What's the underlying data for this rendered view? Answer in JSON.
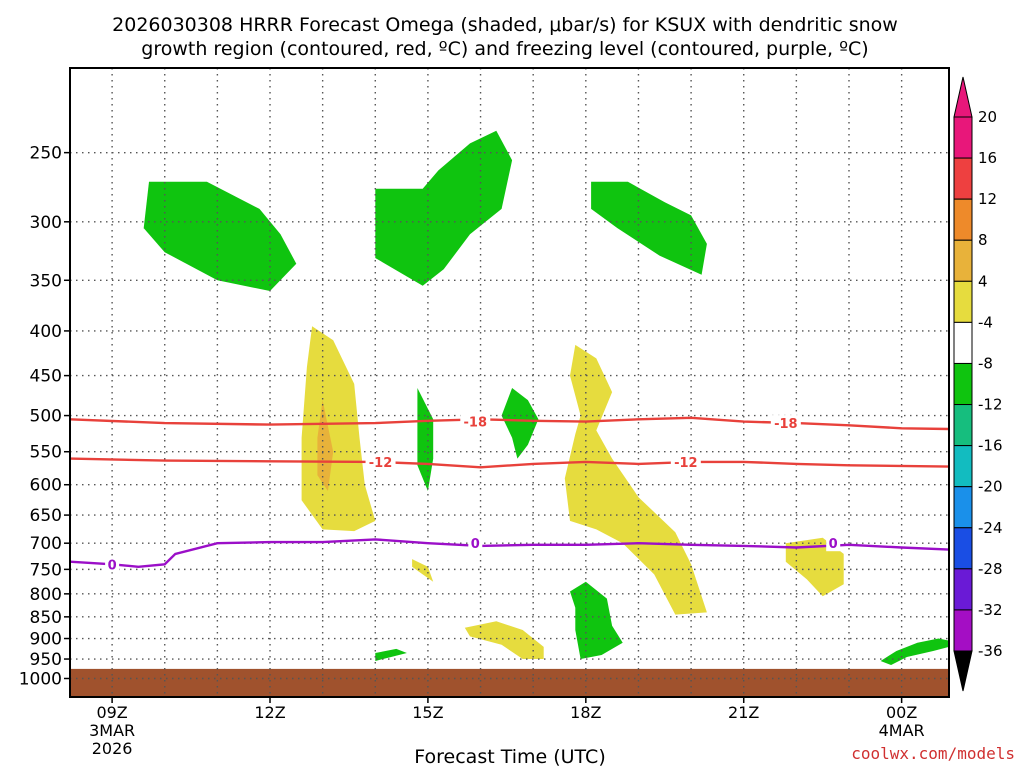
{
  "title_line1": "2026030308 HRRR Forecast Omega (shaded, μbar/s) for KSUX with dendritic snow",
  "title_line2": "growth region (contoured, red, ºC) and freezing level (contoured, purple, ºC)",
  "xlabel": "Forecast Time (UTC)",
  "credit": "coolwx.com/models",
  "colors": {
    "ground": "#a0522d",
    "dgz_contour": "#e8413b",
    "freezing_contour": "#9b0fc8",
    "grid": "#555555",
    "credit": "#d03030"
  },
  "chart_data": {
    "type": "heatmap",
    "y_axis": {
      "quantity": "pressure (hPa)",
      "scale": "log",
      "inverted": true,
      "range": [
        200,
        1050
      ],
      "ticks": [
        250,
        300,
        350,
        400,
        450,
        500,
        550,
        600,
        650,
        700,
        750,
        800,
        850,
        900,
        950,
        1000
      ],
      "tick_labels": [
        "250",
        "300",
        "350",
        "400",
        "450",
        "500",
        "550",
        "600",
        "650",
        "700",
        "750",
        "800",
        "850",
        "900",
        "950",
        "1000"
      ]
    },
    "x_axis": {
      "unit": "hours UTC from 2026-03-03 09Z",
      "range": [
        -0.8,
        15.9
      ],
      "ticks": [
        {
          "hour": 0,
          "label": "09Z",
          "sub1": "3MAR",
          "sub2": "2026"
        },
        {
          "hour": 3,
          "label": "12Z",
          "sub1": "",
          "sub2": ""
        },
        {
          "hour": 6,
          "label": "15Z",
          "sub1": "",
          "sub2": ""
        },
        {
          "hour": 9,
          "label": "18Z",
          "sub1": "",
          "sub2": ""
        },
        {
          "hour": 12,
          "label": "21Z",
          "sub1": "",
          "sub2": ""
        },
        {
          "hour": 15,
          "label": "00Z",
          "sub1": "4MAR",
          "sub2": ""
        }
      ]
    },
    "grid": true,
    "ground_pressure": 975,
    "colorbar": {
      "levels": [
        {
          "label": "20",
          "color": "#e8177a"
        },
        {
          "label": "16",
          "color": "#ee4040"
        },
        {
          "label": "12",
          "color": "#ee8a2a"
        },
        {
          "label": "8",
          "color": "#e8b23a"
        },
        {
          "label": "4",
          "color": "#e6dc3e"
        },
        {
          "label": "-4",
          "color": "#ffffff"
        },
        {
          "label": "-8",
          "color": "#0fc40f"
        },
        {
          "label": "-12",
          "color": "#16be7e"
        },
        {
          "label": "-16",
          "color": "#12bcc0"
        },
        {
          "label": "-20",
          "color": "#1a90ea"
        },
        {
          "label": "-24",
          "color": "#1a4ee4"
        },
        {
          "label": "-28",
          "color": "#6a1ad6"
        },
        {
          "label": "-32",
          "color": "#a40ec4"
        },
        {
          "label": "-36",
          "color": "#a8a8a8"
        }
      ],
      "top_triangle": "#e8177a",
      "bottom_triangle": "#000000"
    },
    "omega_regions": [
      {
        "level": "-8",
        "color": "#0fc40f",
        "points": [
          [
            0.7,
            270
          ],
          [
            1.8,
            270
          ],
          [
            2.8,
            290
          ],
          [
            3.2,
            310
          ],
          [
            3.5,
            335
          ],
          [
            3,
            360
          ],
          [
            2,
            350
          ],
          [
            1,
            325
          ],
          [
            0.6,
            305
          ]
        ]
      },
      {
        "level": "-8",
        "color": "#0fc40f",
        "points": [
          [
            5,
            275
          ],
          [
            5.9,
            275
          ],
          [
            6.2,
            262
          ],
          [
            6.8,
            244
          ],
          [
            7.3,
            236
          ],
          [
            7.6,
            255
          ],
          [
            7.4,
            290
          ],
          [
            6.8,
            310
          ],
          [
            6.3,
            340
          ],
          [
            5.9,
            355
          ],
          [
            5,
            330
          ]
        ]
      },
      {
        "level": "-8",
        "color": "#0fc40f",
        "points": [
          [
            9.1,
            270
          ],
          [
            9.8,
            270
          ],
          [
            10.5,
            285
          ],
          [
            11,
            295
          ],
          [
            11.3,
            318
          ],
          [
            11.2,
            345
          ],
          [
            10.4,
            328
          ],
          [
            9.6,
            305
          ],
          [
            9.1,
            290
          ]
        ]
      },
      {
        "level": "4",
        "color": "#e6dc3e",
        "points": [
          [
            3.8,
            395
          ],
          [
            4.2,
            410
          ],
          [
            4.6,
            460
          ],
          [
            4.7,
            530
          ],
          [
            4.8,
            600
          ],
          [
            5,
            660
          ],
          [
            4.6,
            678
          ],
          [
            4,
            675
          ],
          [
            3.6,
            625
          ],
          [
            3.6,
            530
          ],
          [
            3.7,
            440
          ]
        ]
      },
      {
        "level": "8",
        "color": "#e8b23a",
        "points": [
          [
            4,
            480
          ],
          [
            4.2,
            550
          ],
          [
            4.1,
            610
          ],
          [
            3.9,
            585
          ],
          [
            3.9,
            530
          ]
        ]
      },
      {
        "level": "4",
        "color": "#e6dc3e",
        "points": [
          [
            8.8,
            415
          ],
          [
            9.2,
            430
          ],
          [
            9.5,
            470
          ],
          [
            9.2,
            520
          ],
          [
            9.5,
            560
          ],
          [
            10,
            620
          ],
          [
            10.7,
            680
          ],
          [
            11,
            740
          ],
          [
            11.3,
            840
          ],
          [
            10.7,
            845
          ],
          [
            10.3,
            760
          ],
          [
            9.7,
            700
          ],
          [
            9.2,
            675
          ],
          [
            8.7,
            660
          ],
          [
            8.6,
            590
          ],
          [
            8.8,
            525
          ],
          [
            8.9,
            500
          ],
          [
            8.7,
            450
          ]
        ]
      },
      {
        "level": "4",
        "color": "#e6dc3e",
        "points": [
          [
            5.7,
            730
          ],
          [
            6,
            745
          ],
          [
            6.1,
            775
          ],
          [
            5.9,
            760
          ],
          [
            5.7,
            745
          ]
        ]
      },
      {
        "level": "4",
        "color": "#e6dc3e",
        "points": [
          [
            12.8,
            700
          ],
          [
            13.5,
            690
          ],
          [
            13.9,
            720
          ],
          [
            13.9,
            780
          ],
          [
            13.5,
            805
          ],
          [
            13.2,
            770
          ],
          [
            12.8,
            735
          ]
        ]
      },
      {
        "level": "4",
        "color": "#e6dc3e",
        "points": [
          [
            6.7,
            875
          ],
          [
            7.3,
            860
          ],
          [
            7.8,
            880
          ],
          [
            8.2,
            920
          ],
          [
            8.2,
            950
          ],
          [
            7.8,
            950
          ],
          [
            7.4,
            915
          ],
          [
            6.8,
            895
          ]
        ]
      },
      {
        "level": "-8",
        "color": "#0fc40f",
        "points": [
          [
            5.8,
            465
          ],
          [
            6.1,
            505
          ],
          [
            6.1,
            560
          ],
          [
            6,
            610
          ],
          [
            5.8,
            570
          ],
          [
            5.8,
            510
          ]
        ]
      },
      {
        "level": "-8",
        "color": "#0fc40f",
        "points": [
          [
            7.6,
            465
          ],
          [
            7.9,
            480
          ],
          [
            8.1,
            505
          ],
          [
            7.9,
            540
          ],
          [
            7.7,
            560
          ],
          [
            7.6,
            530
          ],
          [
            7.4,
            500
          ]
        ]
      },
      {
        "level": "-8",
        "color": "#0fc40f",
        "points": [
          [
            8.7,
            795
          ],
          [
            9,
            775
          ],
          [
            9.4,
            810
          ],
          [
            9.5,
            870
          ],
          [
            9.7,
            910
          ],
          [
            9.3,
            940
          ],
          [
            8.9,
            950
          ],
          [
            8.8,
            880
          ],
          [
            8.8,
            830
          ]
        ]
      },
      {
        "level": "-8",
        "color": "#0fc40f",
        "points": [
          [
            5,
            935
          ],
          [
            5.4,
            925
          ],
          [
            5.6,
            935
          ],
          [
            5.3,
            945
          ],
          [
            5,
            955
          ]
        ]
      },
      {
        "level": "-8",
        "color": "#0fc40f",
        "points": [
          [
            14.6,
            955
          ],
          [
            14.9,
            930
          ],
          [
            15.3,
            910
          ],
          [
            15.7,
            900
          ],
          [
            15.9,
            905
          ],
          [
            15.9,
            920
          ],
          [
            15.6,
            930
          ],
          [
            15.1,
            945
          ],
          [
            14.8,
            965
          ]
        ]
      }
    ],
    "contours": [
      {
        "kind": "dgz",
        "value": -18,
        "label": "-18",
        "label_at": [
          [
            6.9,
            508
          ],
          [
            12.8,
            510
          ]
        ],
        "points": [
          [
            -0.8,
            505
          ],
          [
            1,
            510
          ],
          [
            3,
            512
          ],
          [
            5,
            510
          ],
          [
            6,
            507
          ],
          [
            7,
            505
          ],
          [
            8,
            507
          ],
          [
            9,
            508
          ],
          [
            10,
            505
          ],
          [
            11,
            503
          ],
          [
            12,
            508
          ],
          [
            13,
            510
          ],
          [
            14,
            513
          ],
          [
            15,
            517
          ],
          [
            15.9,
            518
          ]
        ]
      },
      {
        "kind": "dgz",
        "value": -12,
        "label": "-12",
        "label_at": [
          [
            5.1,
            565
          ],
          [
            10.9,
            565
          ]
        ],
        "points": [
          [
            -0.8,
            560
          ],
          [
            1,
            563
          ],
          [
            3,
            564
          ],
          [
            5,
            565
          ],
          [
            6,
            568
          ],
          [
            7,
            573
          ],
          [
            8,
            568
          ],
          [
            9,
            565
          ],
          [
            10,
            568
          ],
          [
            11,
            565
          ],
          [
            12,
            565
          ],
          [
            13,
            568
          ],
          [
            14,
            570
          ],
          [
            15.9,
            572
          ]
        ]
      },
      {
        "kind": "freezing",
        "value": 0,
        "label": "0",
        "label_at": [
          [
            0,
            740
          ],
          [
            6.9,
            700
          ],
          [
            13.7,
            700
          ]
        ],
        "points": [
          [
            -0.8,
            735
          ],
          [
            0,
            740
          ],
          [
            0.5,
            745
          ],
          [
            1,
            740
          ],
          [
            1.2,
            720
          ],
          [
            2,
            700
          ],
          [
            3,
            698
          ],
          [
            4,
            698
          ],
          [
            5,
            693
          ],
          [
            6,
            700
          ],
          [
            7,
            705
          ],
          [
            8,
            703
          ],
          [
            9,
            703
          ],
          [
            10,
            700
          ],
          [
            11,
            703
          ],
          [
            12,
            705
          ],
          [
            13,
            708
          ],
          [
            14,
            703
          ],
          [
            15,
            708
          ],
          [
            15.9,
            712
          ]
        ]
      }
    ]
  }
}
